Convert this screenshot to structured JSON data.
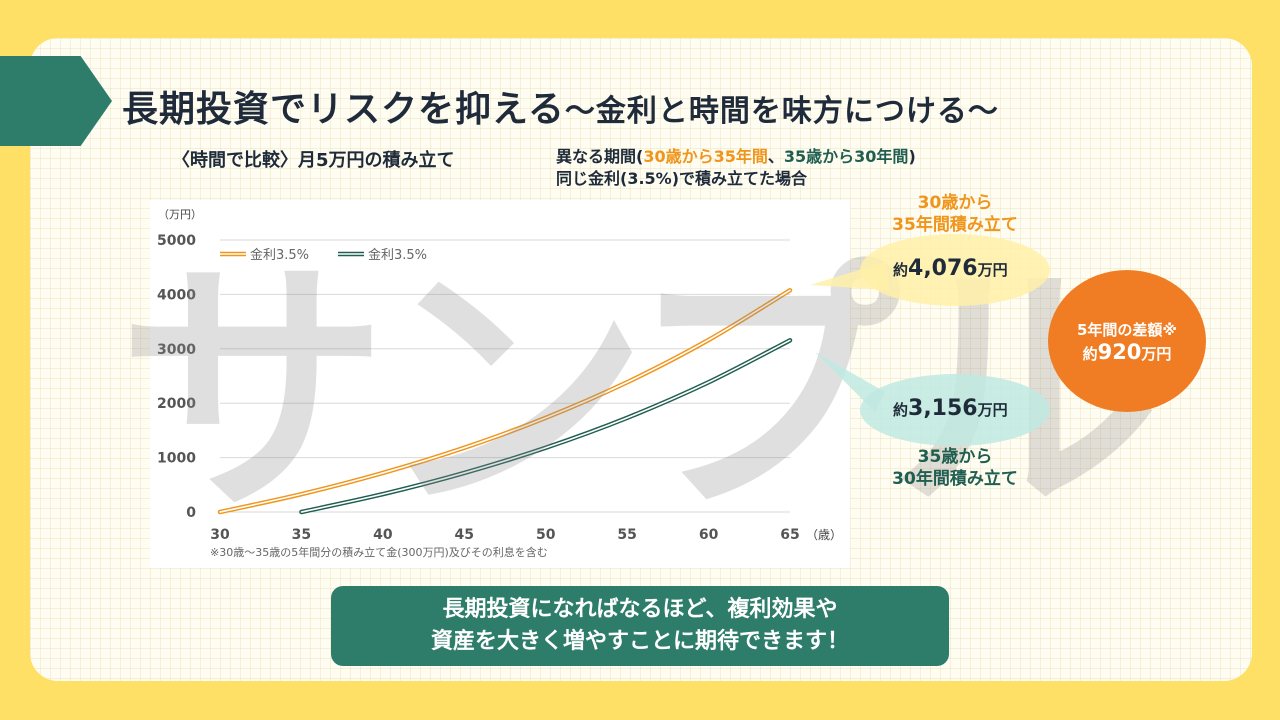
{
  "title": {
    "main": "長期投資でリスクを抑える",
    "sub": "～金利と時間を味方につける～"
  },
  "subtitle": "〈時間で比較〉月5万円の積み立て",
  "condition": {
    "line1_prefix": "異なる期間(",
    "line1_orange": "30歳から35年間",
    "line1_sep": "、",
    "line1_green": "35歳から30年間",
    "line1_suffix": ")",
    "line2": "同じ金利(3.5%)で積み立てた場合"
  },
  "watermark": "サンプル",
  "callout_top": {
    "label_l1": "30歳から",
    "label_l2": "35年間積み立て",
    "prefix": "約",
    "value": "4,076",
    "unit": "万円"
  },
  "callout_bottom": {
    "label_l1": "35歳から",
    "label_l2": "30年間積み立て",
    "prefix": "約",
    "value": "3,156",
    "unit": "万円"
  },
  "difference": {
    "label": "5年間の差額※",
    "prefix": "約",
    "value": "920",
    "unit": "万円"
  },
  "banner": {
    "line1": "長期投資になればなるほど、複利効果や",
    "line2": "資産を大きく増やすことに期待できます！"
  },
  "note": "※30歳～35歳の5年間分の積み立て金(300万円)及びその利息を含む",
  "colors": {
    "orange": "#f0951c",
    "green": "#1f5e50",
    "accent_green": "#2e7d6b",
    "diff_orange": "#f07d23"
  },
  "chart_data": {
    "type": "line",
    "ylabel": "（万円）",
    "xlabel": "（歳）",
    "xlim": [
      30,
      65
    ],
    "ylim": [
      0,
      5000
    ],
    "x_ticks": [
      30,
      35,
      40,
      45,
      50,
      55,
      60,
      65
    ],
    "y_ticks": [
      0,
      1000,
      2000,
      3000,
      4000,
      5000
    ],
    "grid": true,
    "legend": "top-left",
    "series": [
      {
        "name": "金利3.5%",
        "color": "#f0951c",
        "x": [
          30,
          35,
          40,
          45,
          50,
          55,
          60,
          65
        ],
        "values": [
          0,
          328,
          718,
          1181,
          1731,
          2385,
          3162,
          4076
        ]
      },
      {
        "name": "金利3.5%",
        "color": "#1f5e50",
        "x": [
          35,
          40,
          45,
          50,
          55,
          60,
          65
        ],
        "values": [
          0,
          328,
          718,
          1181,
          1731,
          2385,
          3156
        ]
      }
    ]
  }
}
